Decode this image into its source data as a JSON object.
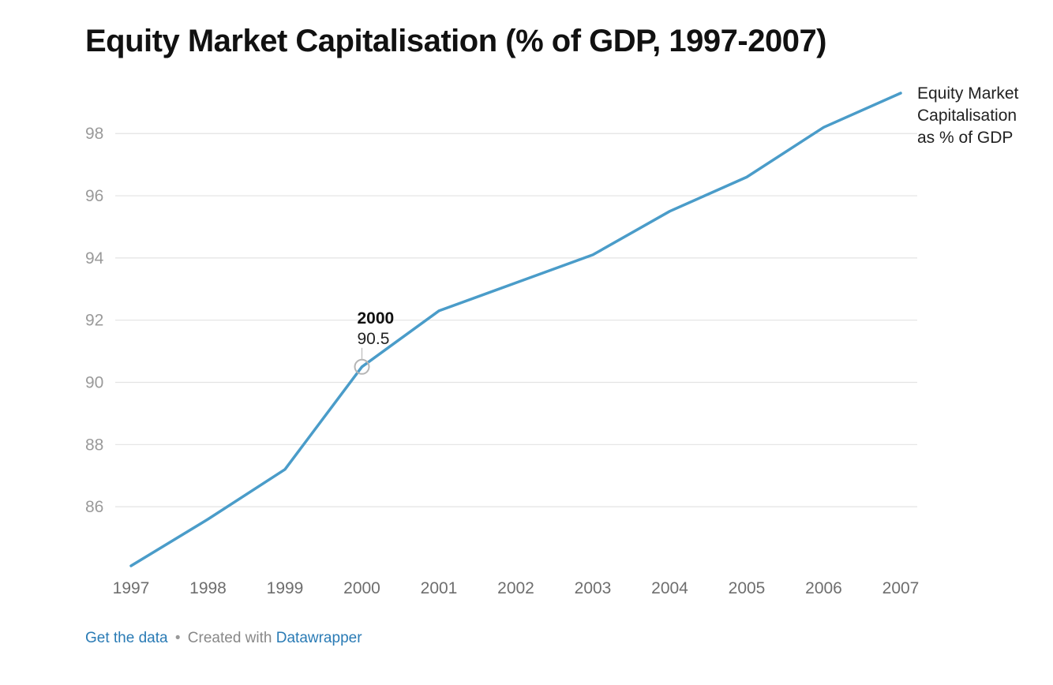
{
  "title": "Equity Market Capitalisation (% of GDP, 1997-2007)",
  "chart_data": {
    "type": "line",
    "x": [
      "1997",
      "1998",
      "1999",
      "2000",
      "2001",
      "2002",
      "2003",
      "2004",
      "2005",
      "2006",
      "2007"
    ],
    "series": [
      {
        "name": "Equity Market Capitalisation as % of GDP",
        "label_lines": [
          "Equity Market",
          "Capitalisation",
          "as % of GDP"
        ],
        "values": [
          84.1,
          85.6,
          87.2,
          90.5,
          92.3,
          93.2,
          94.1,
          95.5,
          96.6,
          98.2,
          99.3
        ],
        "color": "#4a9cc9"
      }
    ],
    "yticks": [
      86,
      88,
      90,
      92,
      94,
      96,
      98
    ],
    "ylim": [
      84.1,
      99.3
    ],
    "grid": true,
    "annotation": {
      "x": "2000",
      "year_label": "2000",
      "value_label": "90.5"
    }
  },
  "footer": {
    "get_data": "Get the data",
    "separator": "•",
    "created_with": "Created with",
    "tool": "Datawrapper"
  }
}
